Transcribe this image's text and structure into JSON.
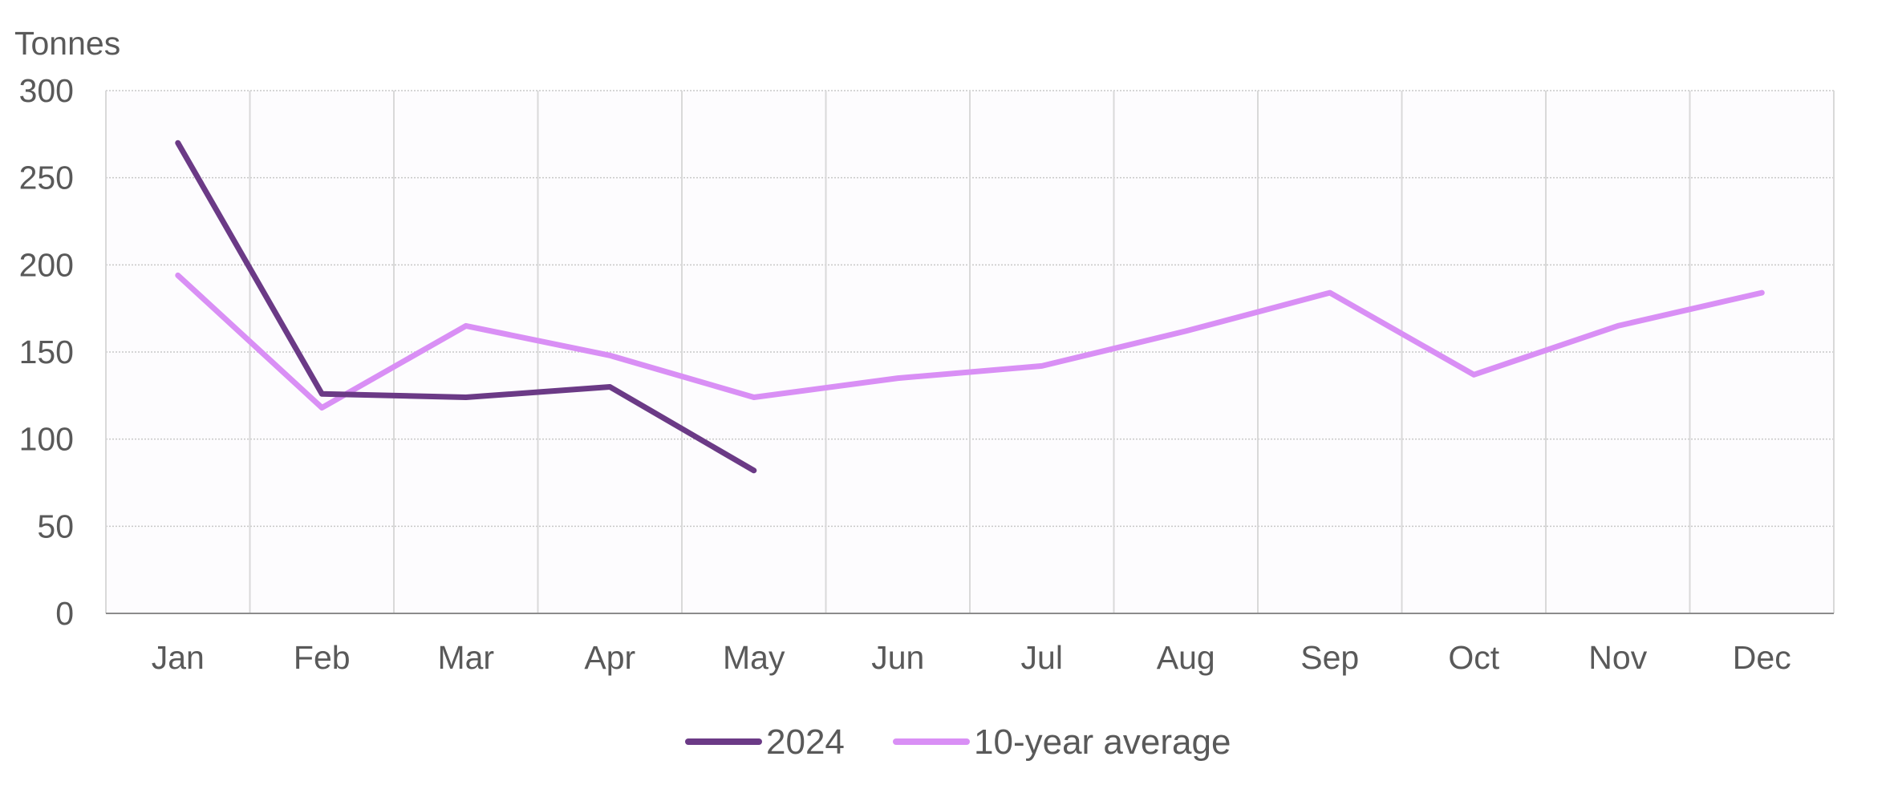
{
  "chart_data": {
    "type": "line",
    "ylabel": "Tonnes",
    "categories": [
      "Jan",
      "Feb",
      "Mar",
      "Apr",
      "May",
      "Jun",
      "Jul",
      "Aug",
      "Sep",
      "Oct",
      "Nov",
      "Dec"
    ],
    "ylim": [
      0,
      300
    ],
    "yticks": [
      0,
      50,
      100,
      150,
      200,
      250,
      300
    ],
    "grid": {
      "horizontal": true,
      "vertical": true
    },
    "legend_position": "bottom",
    "series": [
      {
        "name": "2024",
        "color": "#6b3a86",
        "values": [
          270,
          126,
          124,
          130,
          82,
          null,
          null,
          null,
          null,
          null,
          null,
          null
        ]
      },
      {
        "name": "10-year average",
        "color": "#d98ff5",
        "values": [
          194,
          118,
          165,
          148,
          124,
          135,
          142,
          162,
          184,
          137,
          165,
          184
        ]
      }
    ]
  }
}
